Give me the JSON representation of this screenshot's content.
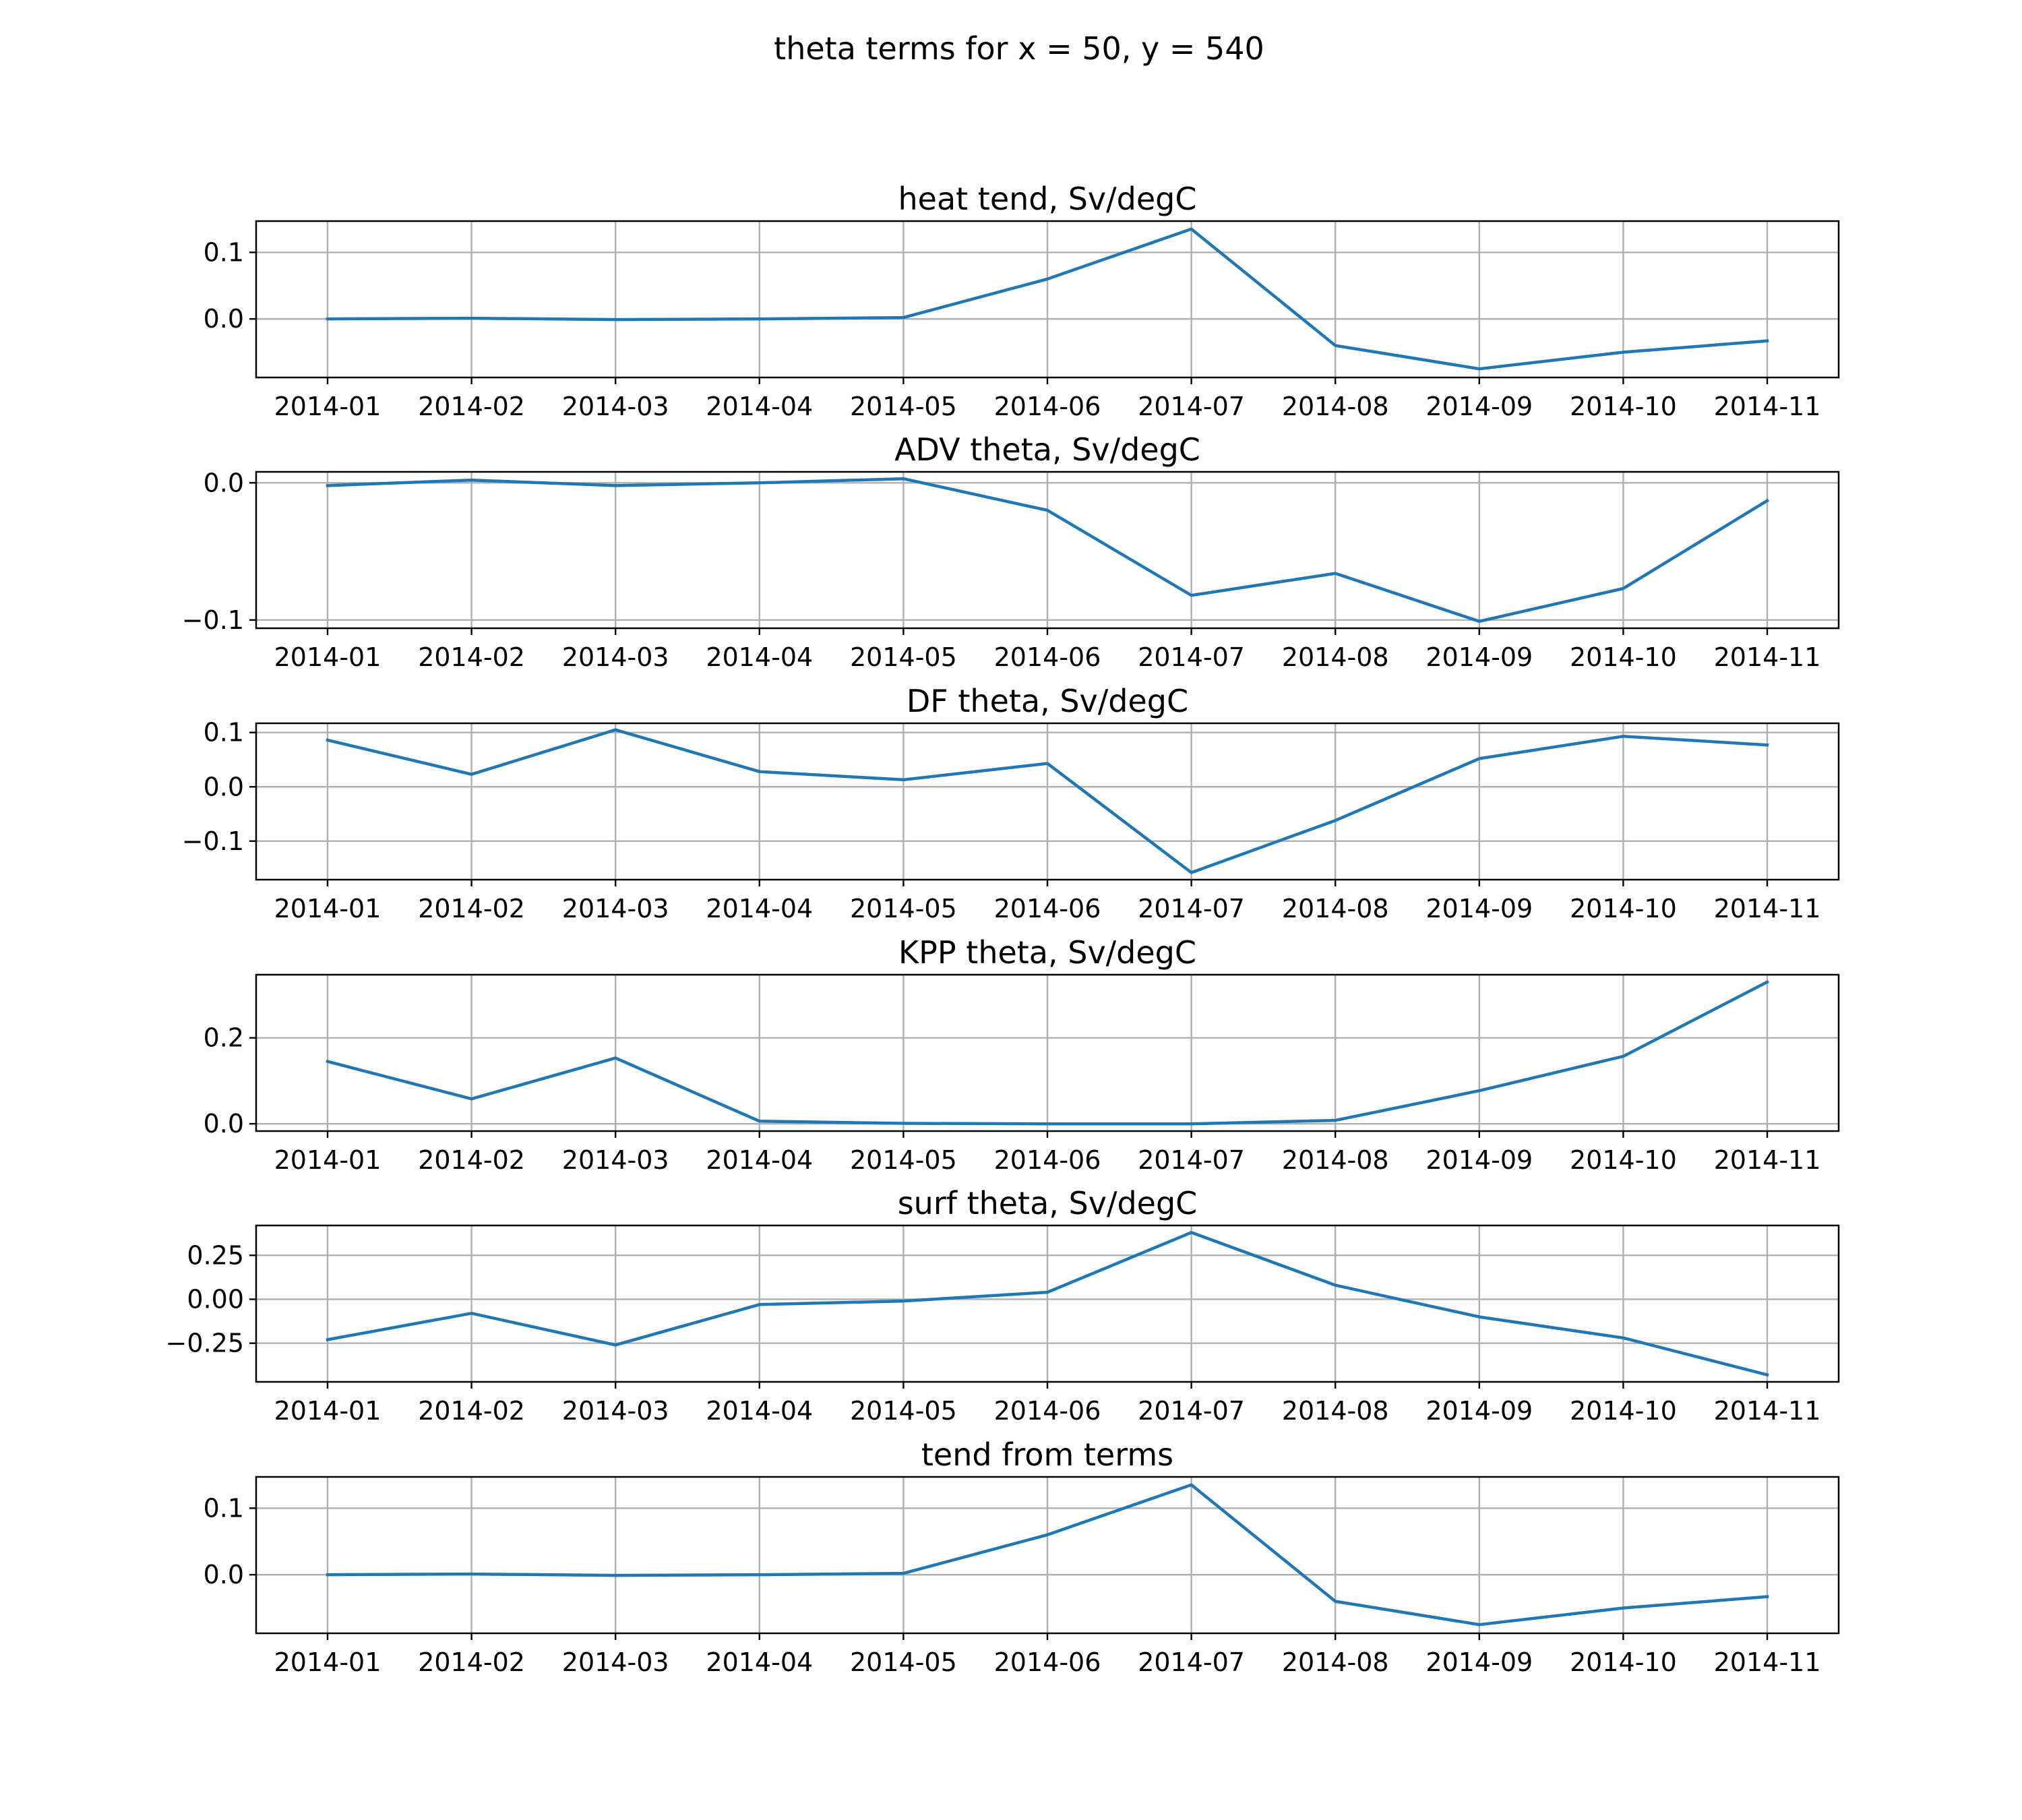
{
  "figure": {
    "title": "theta terms for x = 50, y = 540",
    "line_color": "#1f77b4"
  },
  "chart_data": [
    {
      "type": "line",
      "title": "heat tend, Sv/degC",
      "x": [
        "2014-01",
        "2014-02",
        "2014-03",
        "2014-04",
        "2014-05",
        "2014-06",
        "2014-07",
        "2014-08",
        "2014-09",
        "2014-10",
        "2014-11"
      ],
      "series": [
        {
          "values": [
            0.0,
            0.001,
            -0.001,
            0.0,
            0.002,
            0.06,
            0.135,
            -0.04,
            -0.075,
            -0.05,
            -0.033
          ]
        }
      ],
      "ylim": [
        -0.088,
        0.147
      ],
      "yticks": [
        0.1,
        0.0
      ],
      "ytick_labels": [
        "0.1",
        "0.0"
      ],
      "grid": true
    },
    {
      "type": "line",
      "title": "ADV theta, Sv/degC",
      "x": [
        "2014-01",
        "2014-02",
        "2014-03",
        "2014-04",
        "2014-05",
        "2014-06",
        "2014-07",
        "2014-08",
        "2014-09",
        "2014-10",
        "2014-11"
      ],
      "series": [
        {
          "values": [
            -0.002,
            0.002,
            -0.002,
            0.0,
            0.003,
            -0.02,
            -0.082,
            -0.066,
            -0.101,
            -0.077,
            -0.013
          ]
        }
      ],
      "ylim": [
        -0.106,
        0.008
      ],
      "yticks": [
        0.0,
        -0.1
      ],
      "ytick_labels": [
        "0.0",
        "−0.1"
      ],
      "grid": true
    },
    {
      "type": "line",
      "title": "DF theta, Sv/degC",
      "x": [
        "2014-01",
        "2014-02",
        "2014-03",
        "2014-04",
        "2014-05",
        "2014-06",
        "2014-07",
        "2014-08",
        "2014-09",
        "2014-10",
        "2014-11"
      ],
      "series": [
        {
          "values": [
            0.086,
            0.023,
            0.105,
            0.028,
            0.013,
            0.043,
            -0.158,
            -0.062,
            0.052,
            0.093,
            0.077
          ]
        }
      ],
      "ylim": [
        -0.171,
        0.117
      ],
      "yticks": [
        0.1,
        0.0,
        -0.1
      ],
      "ytick_labels": [
        "0.1",
        "0.0",
        "−0.1"
      ],
      "grid": true
    },
    {
      "type": "line",
      "title": "KPP theta, Sv/degC",
      "x": [
        "2014-01",
        "2014-02",
        "2014-03",
        "2014-04",
        "2014-05",
        "2014-06",
        "2014-07",
        "2014-08",
        "2014-09",
        "2014-10",
        "2014-11"
      ],
      "series": [
        {
          "values": [
            0.145,
            0.058,
            0.153,
            0.006,
            0.001,
            0.0,
            0.0,
            0.008,
            0.077,
            0.157,
            0.33
          ]
        }
      ],
      "ylim": [
        -0.017,
        0.347
      ],
      "yticks": [
        0.2,
        0.0
      ],
      "ytick_labels": [
        "0.2",
        "0.0"
      ],
      "grid": true
    },
    {
      "type": "line",
      "title": "surf theta, Sv/degC",
      "x": [
        "2014-01",
        "2014-02",
        "2014-03",
        "2014-04",
        "2014-05",
        "2014-06",
        "2014-07",
        "2014-08",
        "2014-09",
        "2014-10",
        "2014-11"
      ],
      "series": [
        {
          "values": [
            -0.23,
            -0.08,
            -0.26,
            -0.03,
            -0.01,
            0.04,
            0.38,
            0.08,
            -0.1,
            -0.22,
            -0.43
          ]
        }
      ],
      "ylim": [
        -0.47,
        0.42
      ],
      "yticks": [
        0.25,
        0.0,
        -0.25
      ],
      "ytick_labels": [
        "0.25",
        "0.00",
        "−0.25"
      ],
      "grid": true
    },
    {
      "type": "line",
      "title": "tend from terms",
      "x": [
        "2014-01",
        "2014-02",
        "2014-03",
        "2014-04",
        "2014-05",
        "2014-06",
        "2014-07",
        "2014-08",
        "2014-09",
        "2014-10",
        "2014-11"
      ],
      "series": [
        {
          "values": [
            0.0,
            0.001,
            -0.001,
            0.0,
            0.002,
            0.06,
            0.135,
            -0.04,
            -0.075,
            -0.05,
            -0.033
          ]
        }
      ],
      "ylim": [
        -0.088,
        0.147
      ],
      "yticks": [
        0.1,
        0.0
      ],
      "ytick_labels": [
        "0.1",
        "0.0"
      ],
      "grid": true
    }
  ]
}
